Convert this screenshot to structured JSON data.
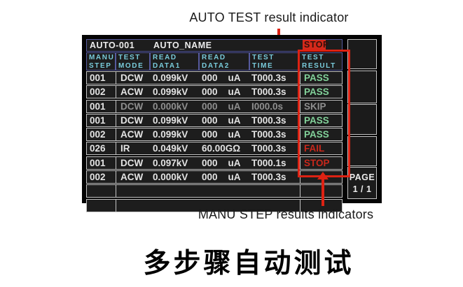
{
  "annotations": {
    "top_label": "AUTO TEST result indicator",
    "bottom_label": "MANU STEP results indicators",
    "caption": "多步骤自动测试",
    "arrow_color": "#dd2213"
  },
  "screen": {
    "title_bar": {
      "program_id": "AUTO-001",
      "program_name": "AUTO_NAME",
      "status": "STOP",
      "status_bg": "#d5291b"
    },
    "header": {
      "columns": [
        {
          "line1": "MANU",
          "line2": "STEP"
        },
        {
          "line1": "TEST",
          "line2": "MODE"
        },
        {
          "line1": "READ",
          "line2": "DATA1"
        },
        {
          "line1": "READ",
          "line2": "DATA2"
        },
        {
          "line1": "TEST",
          "line2": "TIME"
        },
        {
          "line1": "TEST",
          "line2": "RESULT"
        }
      ]
    },
    "rows": [
      {
        "step": "001",
        "mode": "DCW",
        "data1": "0.099kV",
        "data2": "000    uA",
        "time": "T000.3s",
        "result": "PASS",
        "state": "pass"
      },
      {
        "step": "002",
        "mode": "ACW",
        "data1": "0.099kV",
        "data2": "000    uA",
        "time": "T000.3s",
        "result": "PASS",
        "state": "pass"
      },
      {
        "step": "001",
        "mode": "DCW",
        "data1": "0.000kV",
        "data2": "000    uA",
        "time": "I000.0s",
        "result": "SKIP",
        "state": "skip"
      },
      {
        "step": "001",
        "mode": "DCW",
        "data1": "0.099kV",
        "data2": "000    uA",
        "time": "T000.3s",
        "result": "PASS",
        "state": "pass"
      },
      {
        "step": "002",
        "mode": "ACW",
        "data1": "0.099kV",
        "data2": "000    uA",
        "time": "T000.3s",
        "result": "PASS",
        "state": "pass"
      },
      {
        "step": "026",
        "mode": "IR",
        "data1": "0.049kV",
        "data2": "60.00GΩ",
        "time": "T000.3s",
        "result": "FAIL",
        "state": "fail"
      },
      {
        "step": "001",
        "mode": "DCW",
        "data1": "0.097kV",
        "data2": "000    uA",
        "time": "T000.1s",
        "result": "STOP",
        "state": "stop"
      },
      {
        "step": "002",
        "mode": "ACW",
        "data1": "0.000kV",
        "data2": "000    uA",
        "time": "T000.3s",
        "result": "",
        "state": "none"
      },
      {
        "step": "",
        "mode": "",
        "data1": "",
        "data2": "",
        "time": "",
        "result": "",
        "state": "empty"
      },
      {
        "step": "",
        "mode": "",
        "data1": "",
        "data2": "",
        "time": "",
        "result": "",
        "state": "empty"
      }
    ],
    "sidebar": {
      "page_label": "PAGE",
      "page_value": "1 / 1"
    },
    "colors": {
      "pass_green": "#82d29a",
      "fail_red": "#c8281c",
      "skip_gray": "#8f8f8f",
      "header_cyan": "#79cbdb",
      "status_bg_red": "#d5291b",
      "cell_border": "#c4c4c4",
      "header_border": "#565a9e",
      "lcd_background": "#1d1d1d"
    }
  }
}
